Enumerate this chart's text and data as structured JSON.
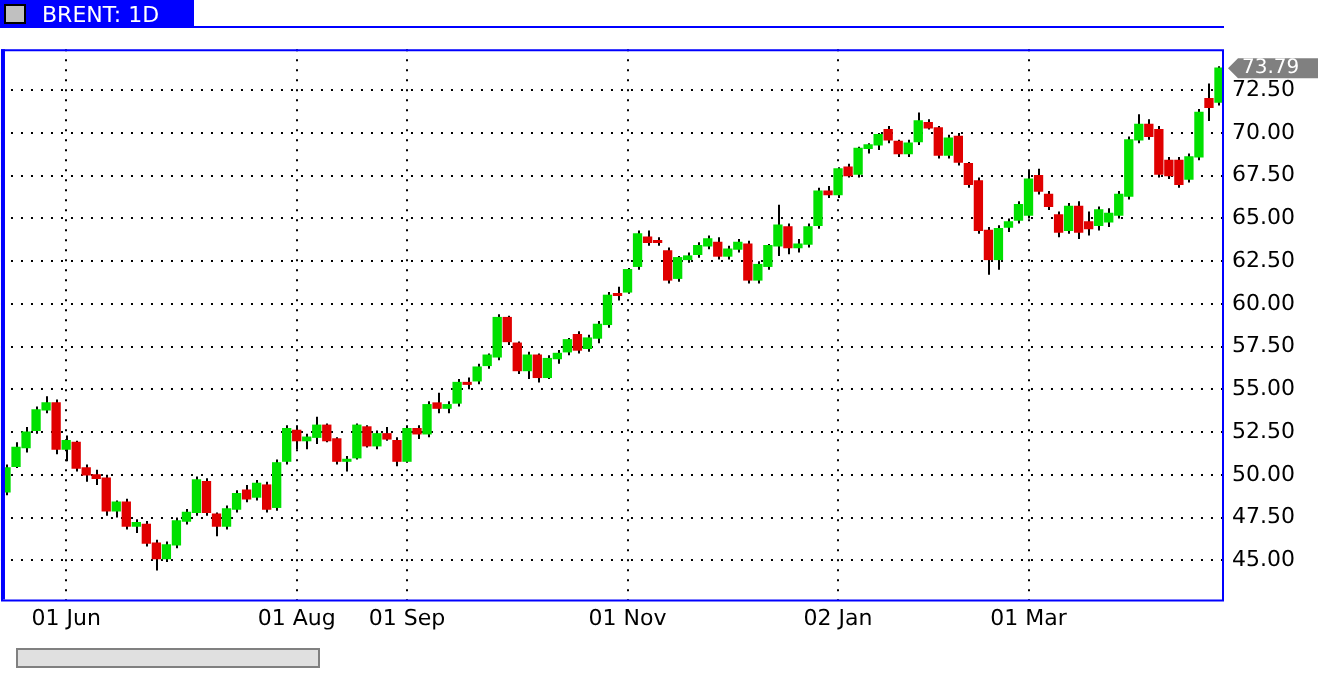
{
  "chart_data": {
    "type": "candlestick",
    "title": "BRENT: 1D",
    "categories": [
      null,
      null,
      null,
      null,
      null,
      null,
      "01 Jun",
      null,
      null,
      null,
      null,
      null,
      null,
      null,
      null,
      null,
      null,
      null,
      null,
      null,
      null,
      null,
      null,
      null,
      null,
      null,
      null,
      null,
      null,
      "01 Aug",
      null,
      null,
      null,
      null,
      null,
      null,
      null,
      null,
      null,
      null,
      "01 Sep",
      null,
      null,
      null,
      null,
      null,
      null,
      null,
      null,
      null,
      null,
      null,
      null,
      null,
      null,
      null,
      null,
      null,
      null,
      null,
      null,
      null,
      "01 Nov",
      null,
      null,
      null,
      null,
      null,
      null,
      null,
      null,
      null,
      null,
      null,
      null,
      null,
      null,
      null,
      null,
      null,
      null,
      null,
      null,
      "02 Jan",
      null,
      null,
      null,
      null,
      null,
      null,
      null,
      null,
      null,
      null,
      null,
      null,
      null,
      null,
      null,
      null,
      null,
      null,
      "01 Mar",
      null,
      null,
      null,
      null,
      null,
      null,
      null,
      null,
      null,
      null,
      null,
      null,
      null,
      null,
      null,
      null,
      null,
      null,
      null
    ],
    "ohlc": [
      [
        49.0,
        50.6,
        48.8,
        50.4
      ],
      [
        50.5,
        51.9,
        50.4,
        51.6
      ],
      [
        51.6,
        52.8,
        51.3,
        52.5
      ],
      [
        52.6,
        54.0,
        52.4,
        53.8
      ],
      [
        53.8,
        54.6,
        53.6,
        54.2
      ],
      [
        54.2,
        54.4,
        51.2,
        51.5
      ],
      [
        51.5,
        52.3,
        50.8,
        52.0
      ],
      [
        51.9,
        52.0,
        50.2,
        50.4
      ],
      [
        50.4,
        50.6,
        49.6,
        50.0
      ],
      [
        50.0,
        50.3,
        49.4,
        49.8
      ],
      [
        49.8,
        50.0,
        47.6,
        47.9
      ],
      [
        47.9,
        48.5,
        47.5,
        48.4
      ],
      [
        48.4,
        48.6,
        46.8,
        47.0
      ],
      [
        47.0,
        47.4,
        46.6,
        47.2
      ],
      [
        47.1,
        47.3,
        45.8,
        46.0
      ],
      [
        46.0,
        46.2,
        44.4,
        45.1
      ],
      [
        45.1,
        46.1,
        44.9,
        45.9
      ],
      [
        45.9,
        47.5,
        45.7,
        47.3
      ],
      [
        47.3,
        48.0,
        47.1,
        47.8
      ],
      [
        47.8,
        49.9,
        47.6,
        49.7
      ],
      [
        49.6,
        49.8,
        47.6,
        47.8
      ],
      [
        47.7,
        47.8,
        46.4,
        47.0
      ],
      [
        47.0,
        48.2,
        46.8,
        48.0
      ],
      [
        48.0,
        49.1,
        47.8,
        48.9
      ],
      [
        49.1,
        49.4,
        48.4,
        48.6
      ],
      [
        48.7,
        49.7,
        48.5,
        49.5
      ],
      [
        49.4,
        49.6,
        47.8,
        48.0
      ],
      [
        48.1,
        50.9,
        47.9,
        50.7
      ],
      [
        50.8,
        52.9,
        50.6,
        52.7
      ],
      [
        52.6,
        52.9,
        51.5,
        52.0
      ],
      [
        52.0,
        52.4,
        51.5,
        52.2
      ],
      [
        52.2,
        53.4,
        51.8,
        52.9
      ],
      [
        52.9,
        53.0,
        51.9,
        52.0
      ],
      [
        52.1,
        52.2,
        50.6,
        50.8
      ],
      [
        50.8,
        51.1,
        50.2,
        50.9
      ],
      [
        51.0,
        53.0,
        50.9,
        52.9
      ],
      [
        52.8,
        52.9,
        51.6,
        51.7
      ],
      [
        51.7,
        52.6,
        51.5,
        52.4
      ],
      [
        52.4,
        52.8,
        52.0,
        52.1
      ],
      [
        52.0,
        52.2,
        50.5,
        50.8
      ],
      [
        50.8,
        52.9,
        50.7,
        52.7
      ],
      [
        52.7,
        52.9,
        52.1,
        52.4
      ],
      [
        52.4,
        54.3,
        52.2,
        54.1
      ],
      [
        54.2,
        54.8,
        53.6,
        53.9
      ],
      [
        53.9,
        54.3,
        53.6,
        54.1
      ],
      [
        54.2,
        55.6,
        54.0,
        55.4
      ],
      [
        55.4,
        55.7,
        55.0,
        55.3
      ],
      [
        55.5,
        56.5,
        55.3,
        56.3
      ],
      [
        56.4,
        57.1,
        56.2,
        57.0
      ],
      [
        56.9,
        59.4,
        56.7,
        59.2
      ],
      [
        59.2,
        59.3,
        57.6,
        57.8
      ],
      [
        57.7,
        57.8,
        55.9,
        56.1
      ],
      [
        56.1,
        57.2,
        55.6,
        57.0
      ],
      [
        57.0,
        57.1,
        55.4,
        55.7
      ],
      [
        55.7,
        57.0,
        55.6,
        56.8
      ],
      [
        56.8,
        57.3,
        56.5,
        57.1
      ],
      [
        57.2,
        58.0,
        57.0,
        57.9
      ],
      [
        58.2,
        58.4,
        57.1,
        57.3
      ],
      [
        57.4,
        58.2,
        57.2,
        58.0
      ],
      [
        58.0,
        59.0,
        57.7,
        58.8
      ],
      [
        58.8,
        60.7,
        58.6,
        60.5
      ],
      [
        60.6,
        61.0,
        60.2,
        60.5
      ],
      [
        60.7,
        62.1,
        60.6,
        62.0
      ],
      [
        62.2,
        64.3,
        62.0,
        64.1
      ],
      [
        63.9,
        64.3,
        63.4,
        63.6
      ],
      [
        63.7,
        63.9,
        63.4,
        63.6
      ],
      [
        63.1,
        63.3,
        61.2,
        61.4
      ],
      [
        61.5,
        62.8,
        61.3,
        62.7
      ],
      [
        62.6,
        63.0,
        62.4,
        62.8
      ],
      [
        62.9,
        63.6,
        62.7,
        63.4
      ],
      [
        63.4,
        64.0,
        63.2,
        63.8
      ],
      [
        63.6,
        63.9,
        62.6,
        62.8
      ],
      [
        62.8,
        63.4,
        62.6,
        63.2
      ],
      [
        63.2,
        63.8,
        63.0,
        63.6
      ],
      [
        63.5,
        63.7,
        61.2,
        61.4
      ],
      [
        61.4,
        62.5,
        61.2,
        62.3
      ],
      [
        62.2,
        63.5,
        62.0,
        63.4
      ],
      [
        63.4,
        65.8,
        62.8,
        64.6
      ],
      [
        64.5,
        64.7,
        62.9,
        63.3
      ],
      [
        63.3,
        63.8,
        63.0,
        63.5
      ],
      [
        63.5,
        64.7,
        63.3,
        64.5
      ],
      [
        64.6,
        66.8,
        64.4,
        66.6
      ],
      [
        66.6,
        66.9,
        66.2,
        66.4
      ],
      [
        66.4,
        68.0,
        66.2,
        67.9
      ],
      [
        68.0,
        68.2,
        67.4,
        67.5
      ],
      [
        67.6,
        69.2,
        67.4,
        69.1
      ],
      [
        69.1,
        69.4,
        68.8,
        69.3
      ],
      [
        69.3,
        70.0,
        69.0,
        69.9
      ],
      [
        70.2,
        70.4,
        69.4,
        69.6
      ],
      [
        69.5,
        69.6,
        68.6,
        68.8
      ],
      [
        68.8,
        69.6,
        68.6,
        69.4
      ],
      [
        69.5,
        71.2,
        69.3,
        70.7
      ],
      [
        70.6,
        70.8,
        70.2,
        70.3
      ],
      [
        70.3,
        70.4,
        68.5,
        68.7
      ],
      [
        68.7,
        69.9,
        68.5,
        69.7
      ],
      [
        69.8,
        70.0,
        68.1,
        68.3
      ],
      [
        68.2,
        68.3,
        66.8,
        67.0
      ],
      [
        67.2,
        67.4,
        64.1,
        64.3
      ],
      [
        64.3,
        64.5,
        61.7,
        62.6
      ],
      [
        62.6,
        64.6,
        62.0,
        64.4
      ],
      [
        64.5,
        65.0,
        64.2,
        64.8
      ],
      [
        64.9,
        66.0,
        64.7,
        65.8
      ],
      [
        65.2,
        67.8,
        65.0,
        67.3
      ],
      [
        67.5,
        67.9,
        66.4,
        66.6
      ],
      [
        66.4,
        66.6,
        65.5,
        65.7
      ],
      [
        65.2,
        65.4,
        63.9,
        64.2
      ],
      [
        64.3,
        65.9,
        64.1,
        65.7
      ],
      [
        65.7,
        66.0,
        63.8,
        64.2
      ],
      [
        64.8,
        65.4,
        64.0,
        64.4
      ],
      [
        64.6,
        65.7,
        64.3,
        65.5
      ],
      [
        64.8,
        65.6,
        64.5,
        65.3
      ],
      [
        65.2,
        66.6,
        65.0,
        66.4
      ],
      [
        66.3,
        69.8,
        66.1,
        69.6
      ],
      [
        69.6,
        71.1,
        69.4,
        70.5
      ],
      [
        70.5,
        70.8,
        69.6,
        69.8
      ],
      [
        70.2,
        70.4,
        67.4,
        67.6
      ],
      [
        68.4,
        68.6,
        67.3,
        67.5
      ],
      [
        68.4,
        68.6,
        66.8,
        67.0
      ],
      [
        67.3,
        68.8,
        67.1,
        68.6
      ],
      [
        68.6,
        71.4,
        68.4,
        71.2
      ],
      [
        72.0,
        72.9,
        70.7,
        71.5
      ],
      [
        71.8,
        73.9,
        71.6,
        73.79
      ]
    ],
    "colors": [
      "#00e000",
      "#00e000",
      "#00e000",
      "#00e000",
      "#00e000",
      "#e00000",
      "#00e000",
      "#e00000",
      "#e00000",
      "#e00000",
      "#e00000",
      "#00e000",
      "#e00000",
      "#00e000",
      "#e00000",
      "#e00000",
      "#00e000",
      "#00e000",
      "#00e000",
      "#00e000",
      "#e00000",
      "#e00000",
      "#00e000",
      "#00e000",
      "#e00000",
      "#00e000",
      "#e00000",
      "#00e000",
      "#00e000",
      "#e00000",
      "#00e000",
      "#00e000",
      "#e00000",
      "#e00000",
      "#00e000",
      "#00e000",
      "#e00000",
      "#00e000",
      "#e00000",
      "#e00000",
      "#00e000",
      "#e00000",
      "#00e000",
      "#e00000",
      "#00e000",
      "#00e000",
      "#e00000",
      "#00e000",
      "#00e000",
      "#00e000",
      "#e00000",
      "#e00000",
      "#00e000",
      "#e00000",
      "#00e000",
      "#00e000",
      "#00e000",
      "#e00000",
      "#00e000",
      "#00e000",
      "#00e000",
      "#e00000",
      "#00e000",
      "#00e000",
      "#e00000",
      "#e00000",
      "#e00000",
      "#00e000",
      "#00e000",
      "#00e000",
      "#00e000",
      "#e00000",
      "#00e000",
      "#00e000",
      "#e00000",
      "#00e000",
      "#00e000",
      "#00e000",
      "#e00000",
      "#00e000",
      "#00e000",
      "#00e000",
      "#e00000",
      "#00e000",
      "#e00000",
      "#00e000",
      "#00e000",
      "#00e000",
      "#e00000",
      "#e00000",
      "#00e000",
      "#00e000",
      "#e00000",
      "#e00000",
      "#00e000",
      "#e00000",
      "#e00000",
      "#e00000",
      "#e00000",
      "#00e000",
      "#00e000",
      "#00e000",
      "#00e000",
      "#e00000",
      "#e00000",
      "#e00000",
      "#00e000",
      "#e00000",
      "#e00000",
      "#00e000",
      "#00e000",
      "#00e000",
      "#00e000",
      "#00e000",
      "#e00000",
      "#e00000",
      "#e00000",
      "#e00000",
      "#00e000",
      "#00e000",
      "#e00000",
      "#00e000"
    ],
    "ylim": [
      42.7,
      74.9
    ],
    "yticks": [
      {
        "value": 45,
        "label": "45.00"
      },
      {
        "value": 47.5,
        "label": "47.50"
      },
      {
        "value": 50,
        "label": "50.00"
      },
      {
        "value": 52.5,
        "label": "52.50"
      },
      {
        "value": 55,
        "label": "55.00"
      },
      {
        "value": 57.5,
        "label": "57.50"
      },
      {
        "value": 60,
        "label": "60.00"
      },
      {
        "value": 62.5,
        "label": "62.50"
      },
      {
        "value": 65,
        "label": "65.00"
      },
      {
        "value": 67.5,
        "label": "67.50"
      },
      {
        "value": 70,
        "label": "70.00"
      },
      {
        "value": 72.5,
        "label": "72.50"
      }
    ],
    "annotations": [
      "73.79"
    ],
    "grid": true
  }
}
